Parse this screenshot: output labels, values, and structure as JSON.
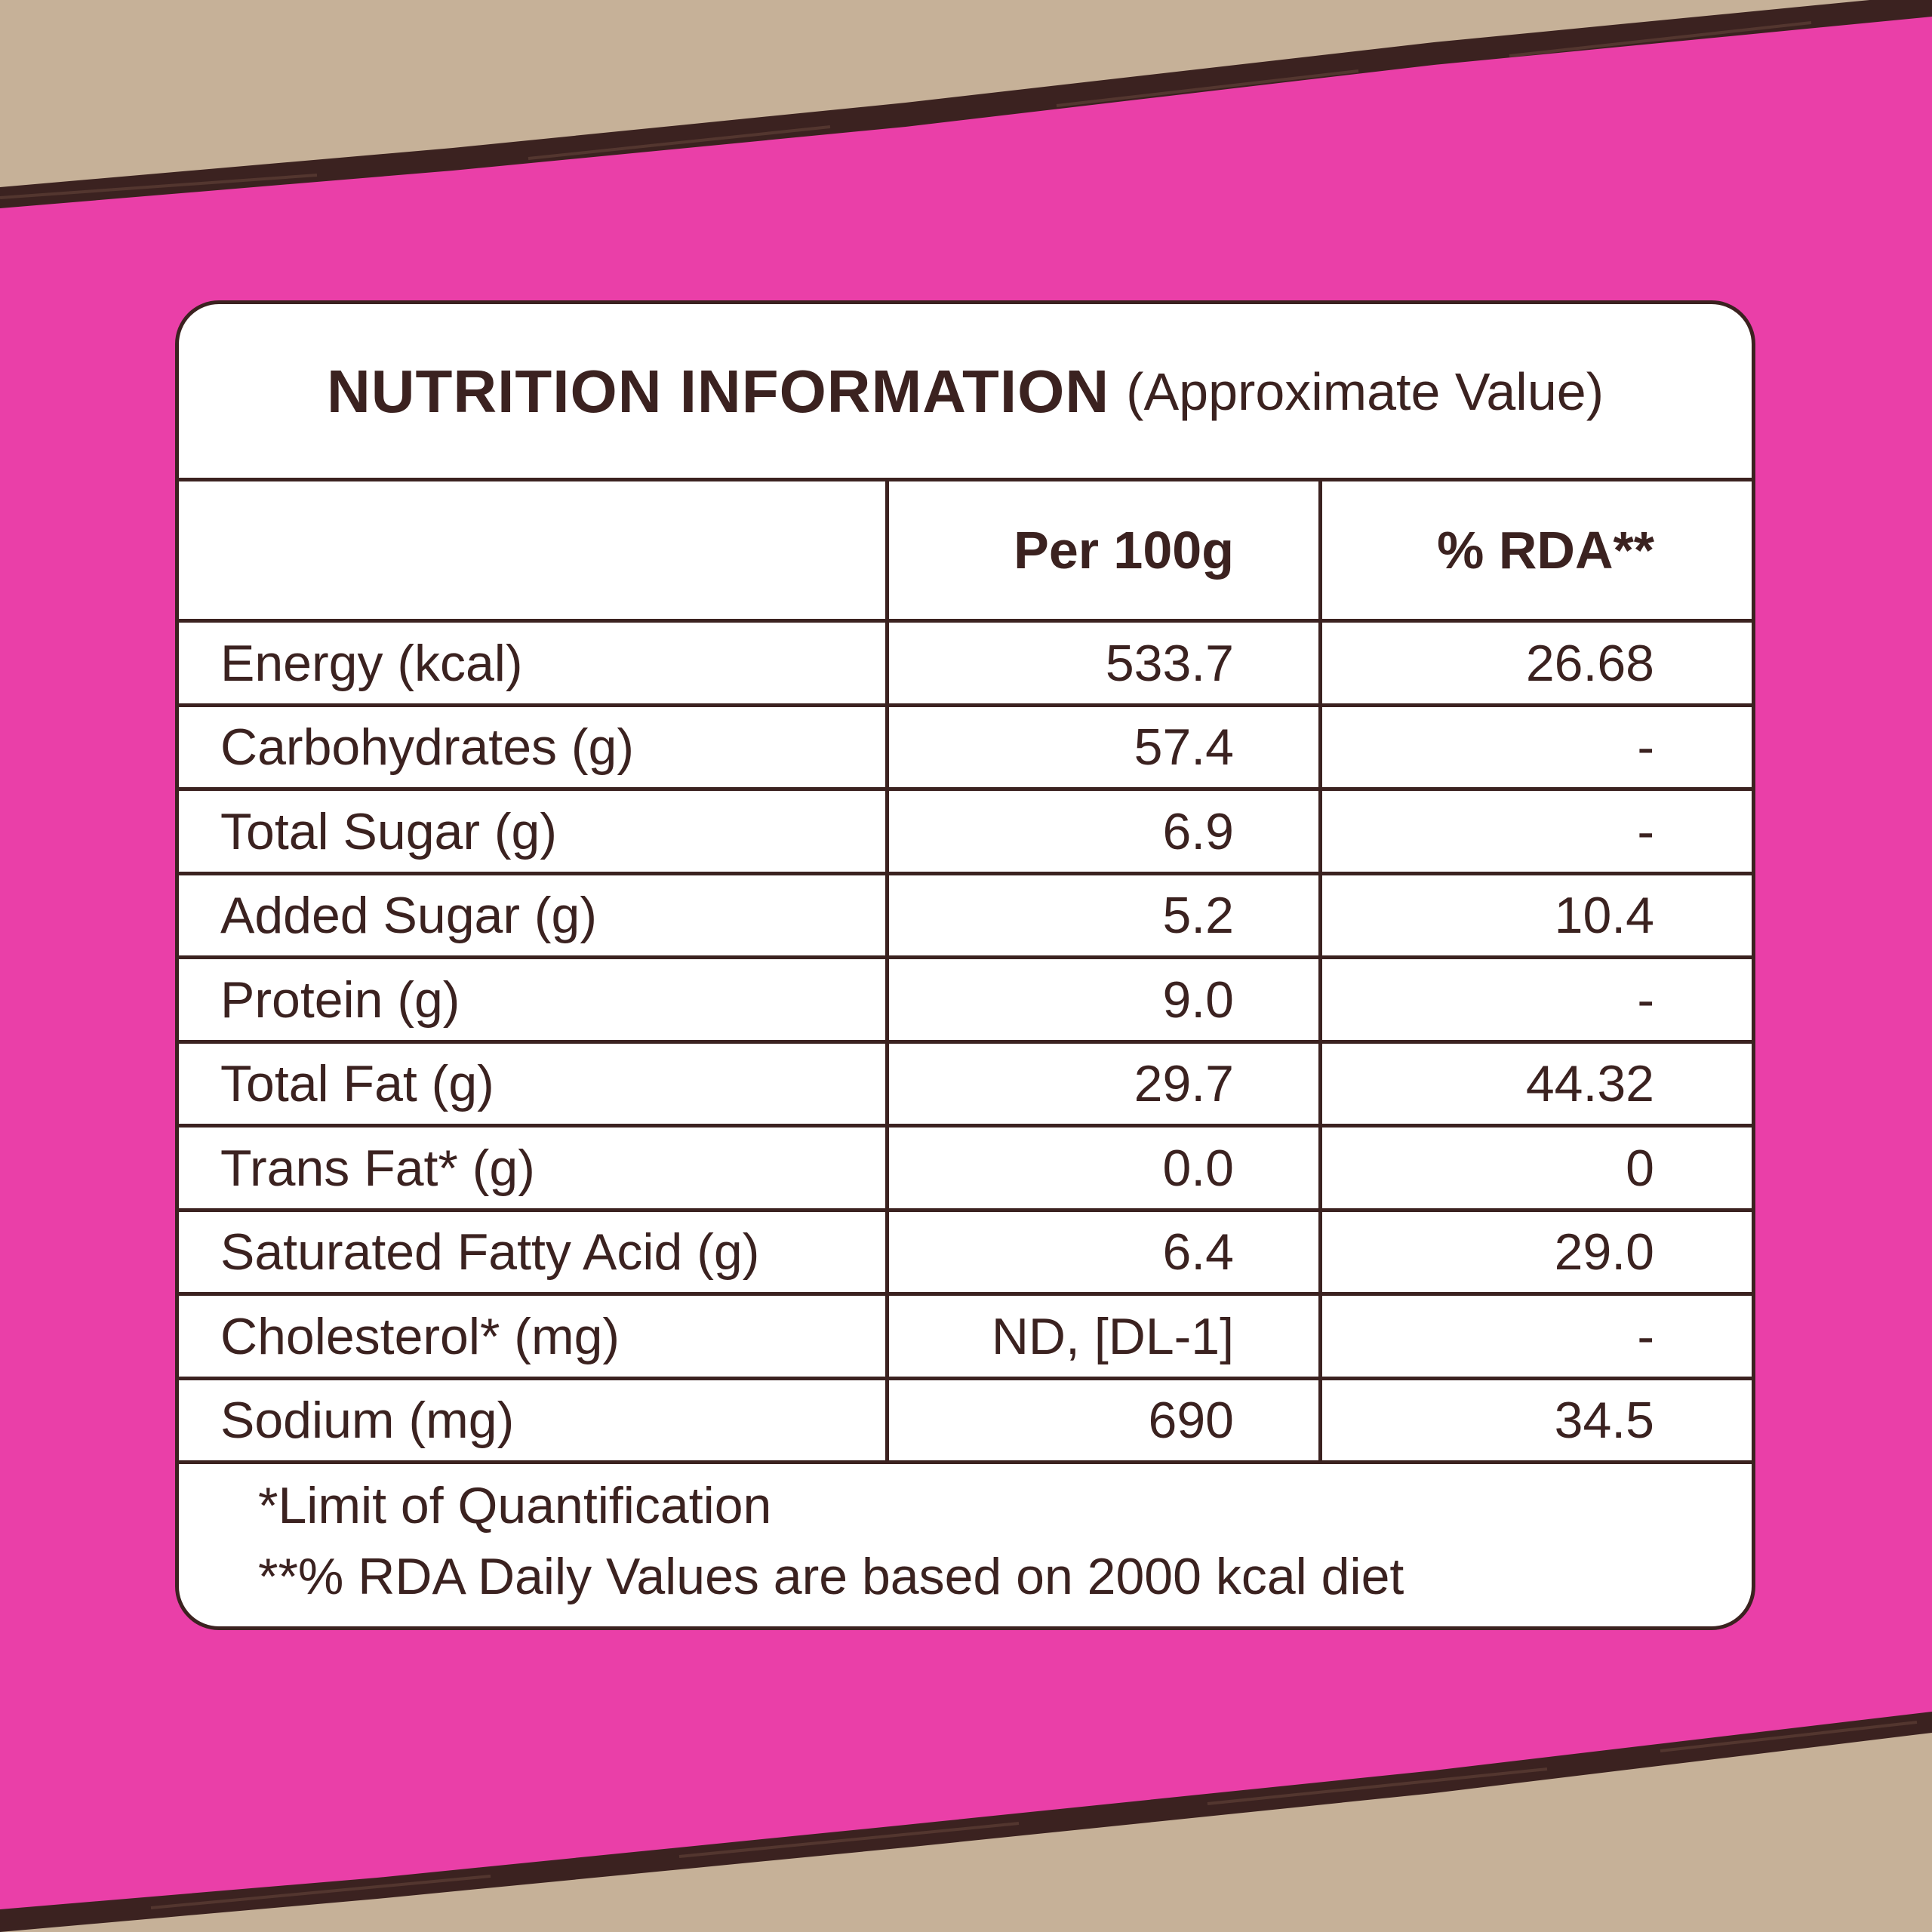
{
  "colors": {
    "background_pink": "#ea3fa8",
    "kraft_paper": "#c6b198",
    "brush_stroke": "#3b2220",
    "card": "#ffffff",
    "text": "#3b2220"
  },
  "table": {
    "title": "NUTRITION INFORMATION",
    "subtitle": "(Approximate Value)",
    "headers": {
      "nutrient": "",
      "per_100g": "Per 100g",
      "rda": "% RDA**"
    },
    "rows": [
      {
        "nutrient": "Energy (kcal)",
        "per_100g": "533.7",
        "rda": "26.68"
      },
      {
        "nutrient": "Carbohydrates (g)",
        "per_100g": "57.4",
        "rda": "-"
      },
      {
        "nutrient": "Total Sugar (g)",
        "per_100g": "6.9",
        "rda": "-"
      },
      {
        "nutrient": "Added Sugar (g)",
        "per_100g": "5.2",
        "rda": "10.4"
      },
      {
        "nutrient": "Protein (g)",
        "per_100g": "9.0",
        "rda": "-"
      },
      {
        "nutrient": "Total Fat (g)",
        "per_100g": "29.7",
        "rda": "44.32"
      },
      {
        "nutrient": "Trans Fat* (g)",
        "per_100g": "0.0",
        "rda": "0"
      },
      {
        "nutrient": "Saturated Fatty Acid (g)",
        "per_100g": "6.4",
        "rda": "29.0"
      },
      {
        "nutrient": "Cholesterol* (mg)",
        "per_100g": "ND, [DL-1]",
        "rda": "-"
      },
      {
        "nutrient": "Sodium (mg)",
        "per_100g": "690",
        "rda": "34.5"
      }
    ],
    "footnotes": [
      "*Limit of Quantification",
      "**% RDA Daily Values are based on 2000 kcal diet"
    ]
  }
}
